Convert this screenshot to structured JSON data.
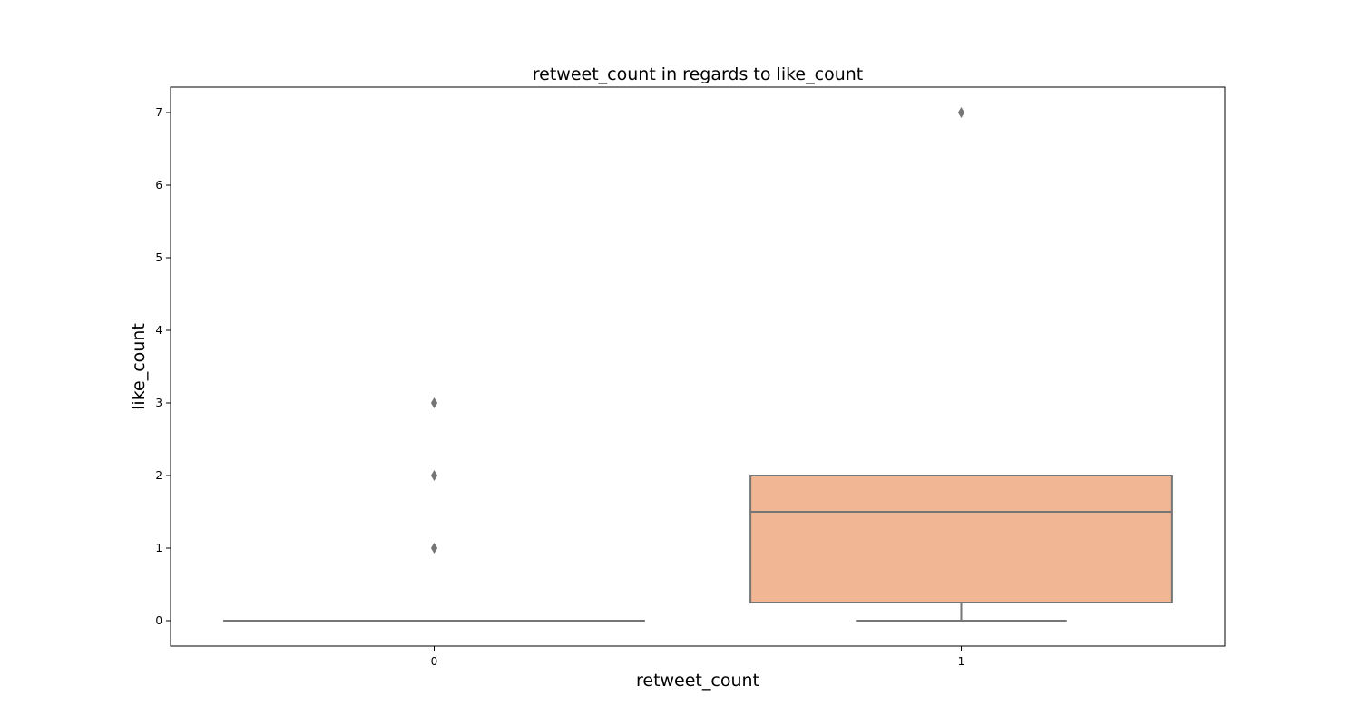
{
  "chart_data": {
    "type": "box",
    "title": "retweet_count in regards to like_count",
    "xlabel": "retweet_count",
    "ylabel": "like_count",
    "categories": [
      "0",
      "1"
    ],
    "ylim": [
      -0.35,
      7.35
    ],
    "yticks": [
      0,
      1,
      2,
      3,
      4,
      5,
      6,
      7
    ],
    "grid": false,
    "boxes": [
      {
        "category": "0",
        "min": 0,
        "q1": 0,
        "median": 0,
        "q3": 0,
        "max": 0,
        "outliers": [
          1,
          2,
          3
        ],
        "color": "#8fa3d4"
      },
      {
        "category": "1",
        "min": 0,
        "q1": 0.25,
        "median": 1.5,
        "q3": 2,
        "max": 2,
        "outliers": [
          7
        ],
        "color": "#f1b693"
      }
    ],
    "line_color": "#767676"
  }
}
